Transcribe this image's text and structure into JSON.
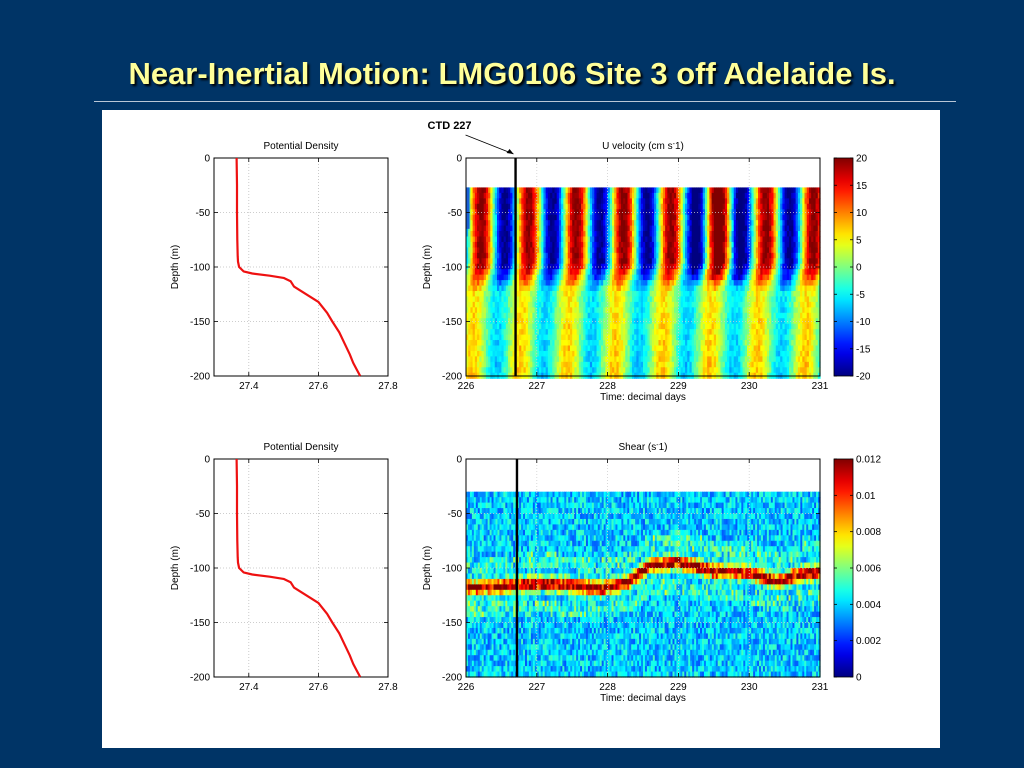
{
  "slide": {
    "title": "Near-Inertial Motion: LMG0106 Site 3 off Adelaide Is."
  },
  "chart_data": [
    {
      "id": "density_top",
      "type": "line",
      "title": "Potential Density",
      "xlabel": "",
      "ylabel": "Depth (m)",
      "xlim": [
        27.3,
        27.8
      ],
      "ylim": [
        -200,
        0
      ],
      "xticks": [
        27.4,
        27.6,
        27.8
      ],
      "yticks": [
        0,
        -50,
        -100,
        -150,
        -200
      ],
      "grid": true,
      "line_color": "#ee1111",
      "series": [
        {
          "x": [
            27.365,
            27.366,
            27.366,
            27.367,
            27.368,
            27.369,
            27.372,
            27.385,
            27.41,
            27.46,
            27.5,
            27.52,
            27.53,
            27.56,
            27.6,
            27.625,
            27.64,
            27.66,
            27.675,
            27.69,
            27.7,
            27.71,
            27.72
          ],
          "y": [
            0,
            -25,
            -50,
            -75,
            -90,
            -95,
            -100,
            -104,
            -106,
            -108,
            -110,
            -113,
            -118,
            -124,
            -132,
            -142,
            -150,
            -160,
            -170,
            -180,
            -188,
            -194,
            -200
          ]
        }
      ]
    },
    {
      "id": "uvel",
      "type": "heatmap",
      "title": "U velocity (cm s",
      "title_sup": "-",
      "title_end": "1)",
      "xlabel": "Time: decimal days",
      "ylabel": "Depth (m)",
      "xlim": [
        226,
        231
      ],
      "ylim": [
        -200,
        0
      ],
      "xticks": [
        226,
        227,
        228,
        229,
        230,
        231
      ],
      "yticks": [
        0,
        -50,
        -100,
        -150,
        -200
      ],
      "data_top_depth": -27,
      "grid": true,
      "marker_line_x": 226.7,
      "marker_label": "CTD 227",
      "colorbar": {
        "min": -20,
        "max": 20,
        "ticks": [
          20,
          15,
          10,
          5,
          0,
          -5,
          -10,
          -15,
          -20
        ],
        "colormap": "jet"
      },
      "description_of_field": "near-inertial U velocity oscillating with ~0.65 day period; strong upper-layer bands above ~100 m, weak below"
    },
    {
      "id": "density_bottom",
      "type": "line",
      "title": "Potential Density",
      "xlabel": "",
      "ylabel": "Depth (m)",
      "xlim": [
        27.3,
        27.8
      ],
      "ylim": [
        -200,
        0
      ],
      "xticks": [
        27.4,
        27.6,
        27.8
      ],
      "yticks": [
        0,
        -50,
        -100,
        -150,
        -200
      ],
      "grid": true,
      "line_color": "#ee1111",
      "series": [
        {
          "x": [
            27.365,
            27.366,
            27.366,
            27.367,
            27.368,
            27.369,
            27.372,
            27.385,
            27.41,
            27.46,
            27.5,
            27.52,
            27.53,
            27.56,
            27.6,
            27.625,
            27.64,
            27.66,
            27.675,
            27.69,
            27.7,
            27.71,
            27.72
          ],
          "y": [
            0,
            -25,
            -50,
            -75,
            -90,
            -95,
            -100,
            -104,
            -106,
            -108,
            -110,
            -113,
            -118,
            -124,
            -132,
            -142,
            -150,
            -160,
            -170,
            -180,
            -188,
            -194,
            -200
          ]
        }
      ]
    },
    {
      "id": "shear",
      "type": "heatmap",
      "title": "Shear (s",
      "title_sup": "-",
      "title_end": "1)",
      "xlabel": "Time: decimal days",
      "ylabel": "Depth (m)",
      "xlim": [
        226,
        231
      ],
      "ylim": [
        -200,
        0
      ],
      "xticks": [
        226,
        227,
        228,
        229,
        230,
        231
      ],
      "yticks": [
        0,
        -50,
        -100,
        -150,
        -200
      ],
      "data_top_depth": -30,
      "grid": true,
      "marker_line_x": 226.72,
      "colorbar": {
        "min": 0,
        "max": 0.012,
        "ticks": [
          0.012,
          0.01,
          0.008,
          0.006,
          0.004,
          0.002,
          0
        ],
        "colormap": "jet"
      },
      "high_shear_band_depth": [
        {
          "t": 226.0,
          "depth": -118
        },
        {
          "t": 226.5,
          "depth": -117
        },
        {
          "t": 227.0,
          "depth": -114
        },
        {
          "t": 227.5,
          "depth": -116
        },
        {
          "t": 227.9,
          "depth": -119
        },
        {
          "t": 228.3,
          "depth": -113
        },
        {
          "t": 228.6,
          "depth": -97
        },
        {
          "t": 229.0,
          "depth": -95
        },
        {
          "t": 229.5,
          "depth": -103
        },
        {
          "t": 230.0,
          "depth": -104
        },
        {
          "t": 230.4,
          "depth": -113
        },
        {
          "t": 230.7,
          "depth": -106
        },
        {
          "t": 231.0,
          "depth": -104
        }
      ]
    }
  ]
}
